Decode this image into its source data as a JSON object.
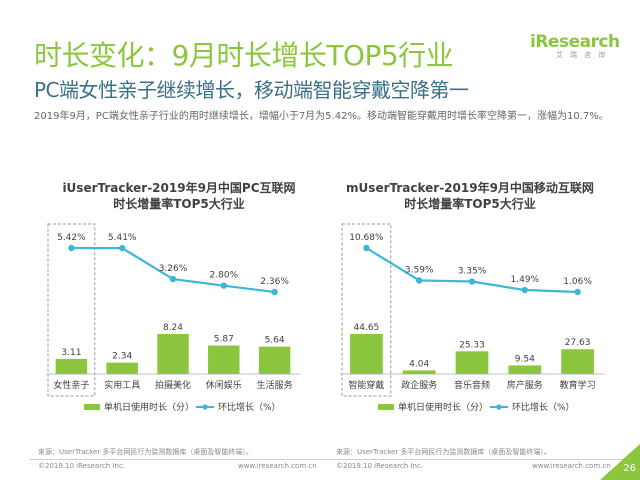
{
  "header": {
    "title": "时长变化：9月时长增长TOP5行业",
    "subtitle": "PC端女性亲子继续增长，移动端智能穿戴空降第一",
    "description": "2019年9月，PC端女性亲子行业的用时继续增长，增幅小于7月为5.42%。移动端智能穿戴用时增长率空降第一，涨幅为10.7%。"
  },
  "logo": {
    "brand_i": "i",
    "brand": "Research",
    "sub": "艾瑞咨询"
  },
  "chart_data": [
    {
      "type": "bar",
      "title_line1": "iUserTracker-2019年9月中国PC互联网",
      "title_line2": "时长增量率TOP5大行业",
      "categories": [
        "女性亲子",
        "实用工具",
        "拍摄美化",
        "休闲娱乐",
        "生活服务"
      ],
      "series": [
        {
          "name": "单机日使用时长（分）",
          "type": "bar",
          "values": [
            3.11,
            2.34,
            8.24,
            5.87,
            5.64
          ],
          "labels": [
            "3.11",
            "2.34",
            "8.24",
            "5.87",
            "5.64"
          ],
          "color": "#8cc63f"
        },
        {
          "name": "环比增长（%）",
          "type": "line",
          "values": [
            5.42,
            5.41,
            3.26,
            2.8,
            2.36
          ],
          "labels": [
            "5.42%",
            "5.41%",
            "3.26%",
            "2.80%",
            "2.36%"
          ],
          "color": "#3fb6d8"
        }
      ],
      "highlight": "女性亲子",
      "source": "来源：UserTracker 多平台网民行为监测数据库（桌面及智能终端）。"
    },
    {
      "type": "bar",
      "title_line1": "mUserTracker-2019年9月中国移动互联网",
      "title_line2": "时长增量率TOP5大行业",
      "categories": [
        "智能穿戴",
        "政企服务",
        "音乐音频",
        "房产服务",
        "教育学习"
      ],
      "series": [
        {
          "name": "单机日使用时长（分）",
          "type": "bar",
          "values": [
            44.65,
            4.04,
            25.33,
            9.54,
            27.63
          ],
          "labels": [
            "44.65",
            "4.04",
            "25.33",
            "9.54",
            "27.63"
          ],
          "color": "#8cc63f"
        },
        {
          "name": "环比增长（%）",
          "type": "line",
          "values": [
            10.68,
            3.59,
            3.35,
            1.49,
            1.06
          ],
          "labels": [
            "10.68%",
            "3.59%",
            "3.35%",
            "1.49%",
            "1.06%"
          ],
          "color": "#3fb6d8"
        }
      ],
      "highlight": "智能穿戴",
      "source": "来源：UserTracker 多平台网民行为监测数据库（桌面及智能终端）。"
    }
  ],
  "footer": {
    "copyright_left": "©2019.10 iResearch Inc.",
    "url_left": "www.iresearch.com.cn",
    "copyright_right": "©2019.10 iResearch Inc.",
    "url_right": "www.iresearch.com.cn",
    "page": "26"
  }
}
